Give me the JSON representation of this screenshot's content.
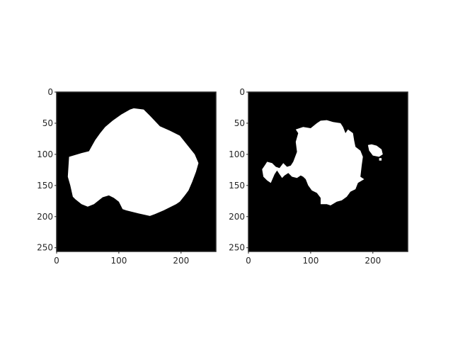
{
  "chart_data": [
    {
      "type": "image-mask",
      "x_ticks": [
        "0",
        "100",
        "200"
      ],
      "y_ticks": [
        "0",
        "50",
        "100",
        "150",
        "200",
        "250"
      ],
      "xlim": [
        0,
        256
      ],
      "ylim": [
        256,
        0
      ],
      "background_color": "#000000",
      "mask_color": "#ffffff",
      "regions": [
        {
          "name": "",
          "points": [
            [
              20,
              104
            ],
            [
              40,
              98
            ],
            [
              52,
              95
            ],
            [
              62,
              77
            ],
            [
              70,
              66
            ],
            [
              78,
              56
            ],
            [
              90,
              46
            ],
            [
              104,
              36
            ],
            [
              118,
              28
            ],
            [
              124,
              26
            ],
            [
              140,
              28
            ],
            [
              150,
              38
            ],
            [
              166,
              55
            ],
            [
              182,
              62
            ],
            [
              198,
              70
            ],
            [
              214,
              90
            ],
            [
              222,
              100
            ],
            [
              228,
              114
            ],
            [
              224,
              128
            ],
            [
              218,
              144
            ],
            [
              212,
              158
            ],
            [
              206,
              166
            ],
            [
              198,
              176
            ],
            [
              192,
              180
            ],
            [
              172,
              190
            ],
            [
              158,
              196
            ],
            [
              150,
              199
            ],
            [
              132,
              195
            ],
            [
              112,
              190
            ],
            [
              106,
              188
            ],
            [
              100,
              176
            ],
            [
              92,
              170
            ],
            [
              84,
              166
            ],
            [
              74,
              169
            ],
            [
              60,
              180
            ],
            [
              50,
              184
            ],
            [
              40,
              180
            ],
            [
              30,
              172
            ],
            [
              26,
              168
            ],
            [
              22,
              150
            ],
            [
              18,
              136
            ]
          ]
        }
      ]
    },
    {
      "type": "image-mask",
      "x_ticks": [
        "0",
        "100",
        "200"
      ],
      "y_ticks": [
        "0",
        "50",
        "100",
        "150",
        "200",
        "250"
      ],
      "xlim": [
        0,
        256
      ],
      "ylim": [
        256,
        0
      ],
      "background_color": "#000000",
      "mask_color": "#ffffff",
      "regions": [
        {
          "name": "",
          "points": [
            [
              72,
              112
            ],
            [
              78,
              96
            ],
            [
              76,
              80
            ],
            [
              80,
              66
            ],
            [
              76,
              60
            ],
            [
              88,
              56
            ],
            [
              100,
              58
            ],
            [
              110,
              50
            ],
            [
              116,
              46
            ],
            [
              126,
              45
            ],
            [
              136,
              48
            ],
            [
              148,
              50
            ],
            [
              152,
              56
            ],
            [
              156,
              66
            ],
            [
              160,
              60
            ],
            [
              168,
              66
            ],
            [
              170,
              78
            ],
            [
              172,
              88
            ],
            [
              180,
              94
            ],
            [
              184,
              104
            ],
            [
              182,
              118
            ],
            [
              180,
              136
            ],
            [
              186,
              140
            ],
            [
              176,
              146
            ],
            [
              172,
              156
            ],
            [
              164,
              160
            ],
            [
              158,
              168
            ],
            [
              150,
              174
            ],
            [
              142,
              176
            ],
            [
              132,
              182
            ],
            [
              126,
              180
            ],
            [
              116,
              180
            ],
            [
              116,
              170
            ],
            [
              110,
              162
            ],
            [
              102,
              158
            ],
            [
              96,
              150
            ],
            [
              92,
              140
            ],
            [
              88,
              136
            ],
            [
              84,
              134
            ],
            [
              78,
              138
            ],
            [
              70,
              136
            ],
            [
              64,
              130
            ],
            [
              58,
              134
            ],
            [
              54,
              138
            ],
            [
              50,
              132
            ],
            [
              46,
              126
            ],
            [
              42,
              132
            ],
            [
              36,
              146
            ],
            [
              30,
              142
            ],
            [
              24,
              136
            ],
            [
              22,
              124
            ],
            [
              26,
              118
            ],
            [
              30,
              112
            ],
            [
              38,
              114
            ],
            [
              44,
              120
            ],
            [
              50,
              122
            ],
            [
              56,
              114
            ],
            [
              62,
              120
            ],
            [
              68,
              118
            ]
          ]
        },
        {
          "name": "",
          "points": [
            [
              192,
              85
            ],
            [
              198,
              84
            ],
            [
              206,
              86
            ],
            [
              214,
              92
            ],
            [
              216,
              100
            ],
            [
              210,
              104
            ],
            [
              200,
              102
            ],
            [
              194,
              94
            ]
          ]
        },
        {
          "name": "",
          "points": [
            [
              210,
              106
            ],
            [
              214,
              106
            ],
            [
              214,
              110
            ],
            [
              210,
              110
            ]
          ]
        }
      ]
    }
  ]
}
